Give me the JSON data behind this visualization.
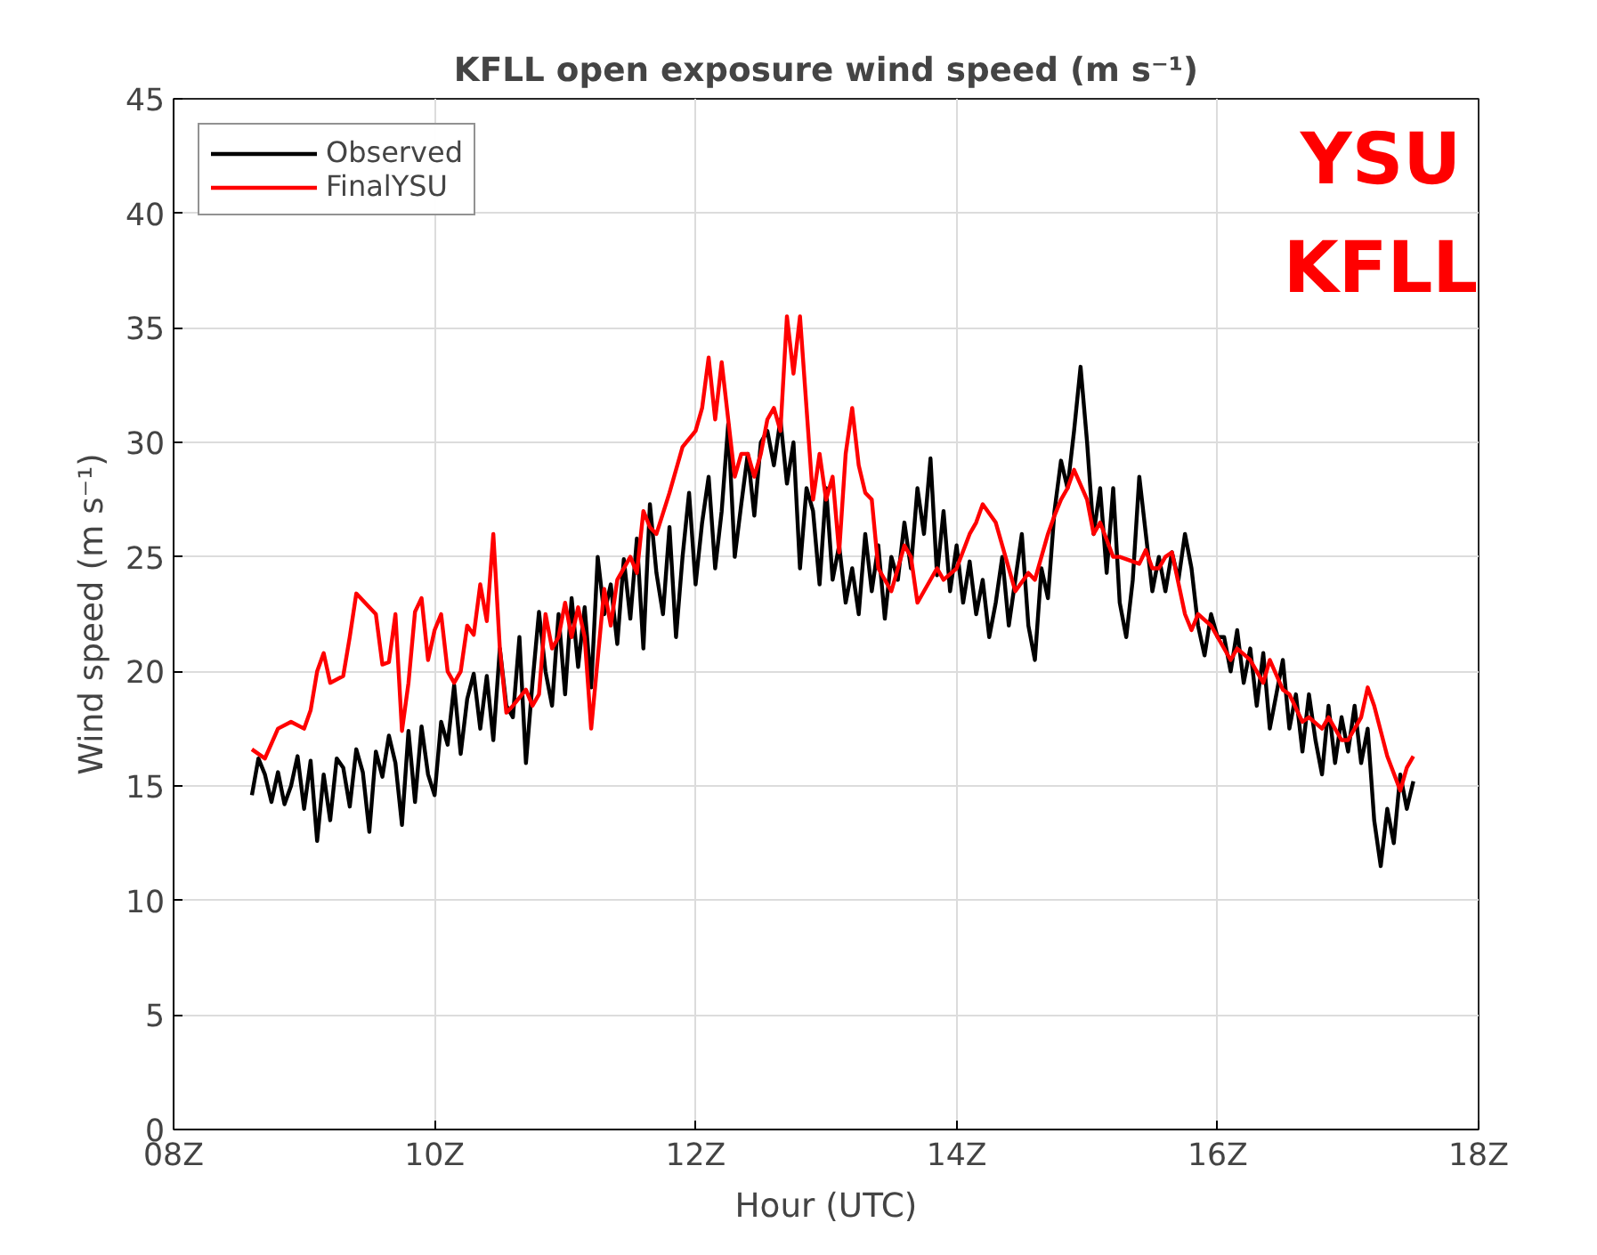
{
  "chart_data": {
    "type": "line",
    "title": "KFLL open exposure wind speed (m s⁻¹)",
    "xlabel": "Hour (UTC)",
    "ylabel": "Wind speed (m s⁻¹)",
    "annotations": [
      "YSU",
      "KFLL"
    ],
    "xlim": [
      8,
      18
    ],
    "ylim": [
      0,
      45
    ],
    "xticks": [
      {
        "value": 8,
        "label": "08Z"
      },
      {
        "value": 10,
        "label": "10Z"
      },
      {
        "value": 12,
        "label": "12Z"
      },
      {
        "value": 14,
        "label": "14Z"
      },
      {
        "value": 16,
        "label": "16Z"
      },
      {
        "value": 18,
        "label": "18Z"
      }
    ],
    "yticks": [
      0,
      5,
      10,
      15,
      20,
      25,
      30,
      35,
      40,
      45
    ],
    "grid": true,
    "legend": "top left",
    "series": [
      {
        "name": "Observed",
        "color": "#000000",
        "x": [
          8.6,
          8.65,
          8.7,
          8.75,
          8.8,
          8.85,
          8.9,
          8.95,
          9.0,
          9.05,
          9.1,
          9.15,
          9.2,
          9.25,
          9.3,
          9.35,
          9.4,
          9.45,
          9.5,
          9.55,
          9.6,
          9.65,
          9.7,
          9.75,
          9.8,
          9.85,
          9.9,
          9.95,
          10.0,
          10.05,
          10.1,
          10.15,
          10.2,
          10.25,
          10.3,
          10.35,
          10.4,
          10.45,
          10.5,
          10.55,
          10.6,
          10.65,
          10.7,
          10.75,
          10.8,
          10.85,
          10.9,
          10.95,
          11.0,
          11.05,
          11.1,
          11.15,
          11.2,
          11.25,
          11.3,
          11.35,
          11.4,
          11.45,
          11.5,
          11.55,
          11.6,
          11.65,
          11.7,
          11.75,
          11.8,
          11.85,
          11.9,
          11.95,
          12.0,
          12.05,
          12.1,
          12.15,
          12.2,
          12.25,
          12.3,
          12.35,
          12.4,
          12.45,
          12.5,
          12.55,
          12.6,
          12.65,
          12.7,
          12.75,
          12.8,
          12.85,
          12.9,
          12.95,
          13.0,
          13.05,
          13.1,
          13.15,
          13.2,
          13.25,
          13.3,
          13.35,
          13.4,
          13.45,
          13.5,
          13.55,
          13.6,
          13.65,
          13.7,
          13.75,
          13.8,
          13.85,
          13.9,
          13.95,
          14.0,
          14.05,
          14.1,
          14.15,
          14.2,
          14.25,
          14.3,
          14.35,
          14.4,
          14.45,
          14.5,
          14.55,
          14.6,
          14.65,
          14.7,
          14.75,
          14.8,
          14.85,
          14.9,
          14.95,
          15.0,
          15.05,
          15.1,
          15.15,
          15.2,
          15.25,
          15.3,
          15.35,
          15.4,
          15.45,
          15.5,
          15.55,
          15.6,
          15.65,
          15.7,
          15.75,
          15.8,
          15.85,
          15.9,
          15.95,
          16.0,
          16.05,
          16.1,
          16.15,
          16.2,
          16.25,
          16.3,
          16.35,
          16.4,
          16.45,
          16.5,
          16.55,
          16.6,
          16.65,
          16.7,
          16.75,
          16.8,
          16.85,
          16.9,
          16.95,
          17.0,
          17.05,
          17.1,
          17.15,
          17.2,
          17.25,
          17.3,
          17.35,
          17.4,
          17.45,
          17.5
        ],
        "values": [
          14.6,
          16.2,
          15.5,
          14.3,
          15.6,
          14.2,
          15.0,
          16.3,
          14.0,
          16.1,
          12.6,
          15.5,
          13.5,
          16.2,
          15.8,
          14.1,
          16.6,
          15.6,
          13.0,
          16.5,
          15.4,
          17.2,
          16.0,
          13.3,
          17.4,
          14.3,
          17.6,
          15.5,
          14.6,
          17.8,
          16.8,
          19.4,
          16.4,
          18.8,
          19.9,
          17.5,
          19.8,
          17.0,
          21.0,
          18.5,
          18.0,
          21.5,
          16.0,
          19.5,
          22.6,
          20.0,
          18.5,
          22.5,
          19.0,
          23.2,
          20.2,
          22.8,
          19.3,
          25.0,
          22.5,
          23.8,
          21.2,
          24.9,
          22.3,
          25.8,
          21.0,
          27.3,
          24.3,
          22.5,
          26.3,
          21.5,
          25.0,
          27.8,
          23.8,
          26.5,
          28.5,
          24.5,
          27.0,
          30.8,
          25.0,
          27.3,
          29.5,
          26.8,
          30.0,
          30.5,
          29.0,
          31.0,
          28.2,
          30.0,
          24.5,
          28.0,
          27.0,
          23.8,
          28.0,
          24.0,
          25.5,
          23.0,
          24.5,
          22.5,
          26.0,
          23.5,
          25.5,
          22.3,
          25.0,
          24.0,
          26.5,
          24.5,
          28.0,
          26.0,
          29.3,
          24.2,
          27.0,
          23.5,
          25.5,
          23.0,
          24.8,
          22.5,
          24.0,
          21.5,
          23.0,
          25.0,
          22.0,
          24.0,
          26.0,
          22.0,
          20.5,
          24.5,
          23.2,
          27.0,
          29.2,
          28.0,
          30.5,
          33.3,
          30.0,
          26.0,
          28.0,
          24.3,
          28.0,
          23.0,
          21.5,
          24.0,
          28.5,
          26.0,
          23.5,
          25.0,
          23.5,
          25.2,
          24.0,
          26.0,
          24.5,
          22.0,
          20.7,
          22.5,
          21.5,
          21.5,
          20.0,
          21.8,
          19.5,
          21.0,
          18.5,
          20.8,
          17.5,
          19.0,
          20.5,
          17.5,
          19.0,
          16.5,
          19.0,
          17.0,
          15.5,
          18.5,
          16.0,
          18.0,
          16.5,
          18.5,
          16.0,
          17.5,
          13.5,
          11.5,
          14.0,
          12.5,
          15.5,
          14.0,
          15.2
        ]
      },
      {
        "name": "FinalYSU",
        "color": "#ff0000",
        "x": [
          8.6,
          8.7,
          8.8,
          8.9,
          9.0,
          9.05,
          9.1,
          9.15,
          9.2,
          9.3,
          9.35,
          9.4,
          9.5,
          9.55,
          9.6,
          9.65,
          9.7,
          9.75,
          9.8,
          9.85,
          9.9,
          9.95,
          10.0,
          10.05,
          10.1,
          10.15,
          10.2,
          10.25,
          10.3,
          10.35,
          10.4,
          10.45,
          10.5,
          10.55,
          10.6,
          10.7,
          10.75,
          10.8,
          10.85,
          10.9,
          10.95,
          11.0,
          11.05,
          11.1,
          11.15,
          11.2,
          11.3,
          11.35,
          11.4,
          11.5,
          11.55,
          11.6,
          11.65,
          11.7,
          11.8,
          11.9,
          12.0,
          12.05,
          12.1,
          12.15,
          12.2,
          12.3,
          12.35,
          12.4,
          12.45,
          12.5,
          12.55,
          12.6,
          12.65,
          12.7,
          12.75,
          12.8,
          12.85,
          12.9,
          12.95,
          13.0,
          13.05,
          13.1,
          13.15,
          13.2,
          13.25,
          13.3,
          13.35,
          13.4,
          13.5,
          13.55,
          13.6,
          13.65,
          13.7,
          13.75,
          13.85,
          13.9,
          14.0,
          14.1,
          14.15,
          14.2,
          14.3,
          14.35,
          14.4,
          14.45,
          14.55,
          14.6,
          14.7,
          14.75,
          14.8,
          14.85,
          14.9,
          15.0,
          15.05,
          15.1,
          15.2,
          15.25,
          15.35,
          15.4,
          15.45,
          15.5,
          15.55,
          15.6,
          15.65,
          15.75,
          15.8,
          15.85,
          15.95,
          16.0,
          16.1,
          16.15,
          16.25,
          16.35,
          16.4,
          16.5,
          16.55,
          16.65,
          16.7,
          16.8,
          16.85,
          16.95,
          17.0,
          17.1,
          17.15,
          17.2,
          17.3,
          17.4,
          17.45,
          17.5
        ],
        "values": [
          16.6,
          16.2,
          17.5,
          17.8,
          17.5,
          18.3,
          20.0,
          20.8,
          19.5,
          19.8,
          21.5,
          23.4,
          22.8,
          22.5,
          20.3,
          20.4,
          22.5,
          17.4,
          19.5,
          22.6,
          23.2,
          20.5,
          21.8,
          22.5,
          20.0,
          19.5,
          20.0,
          22.0,
          21.6,
          23.8,
          22.2,
          26.0,
          21.0,
          18.2,
          18.5,
          19.2,
          18.5,
          19.0,
          22.5,
          21.0,
          21.5,
          23.0,
          21.5,
          22.8,
          21.5,
          17.5,
          23.6,
          22.0,
          24.0,
          25.0,
          24.3,
          27.0,
          26.3,
          26.0,
          27.8,
          29.8,
          30.5,
          31.5,
          33.7,
          31.0,
          33.5,
          28.5,
          29.5,
          29.5,
          28.5,
          29.5,
          31.0,
          31.5,
          30.5,
          35.5,
          33.0,
          35.5,
          31.5,
          27.5,
          29.5,
          27.5,
          28.5,
          25.2,
          29.5,
          31.5,
          29.0,
          27.8,
          27.5,
          24.5,
          23.5,
          24.5,
          25.5,
          25.0,
          23.0,
          23.5,
          24.5,
          24.0,
          24.5,
          26.0,
          26.5,
          27.3,
          26.5,
          25.5,
          24.5,
          23.5,
          24.3,
          24.0,
          26.0,
          26.8,
          27.5,
          28.0,
          28.8,
          27.5,
          26.0,
          26.5,
          25.0,
          25.0,
          24.8,
          24.7,
          25.3,
          24.5,
          24.5,
          25.0,
          25.2,
          22.5,
          21.8,
          22.5,
          22.0,
          21.5,
          20.5,
          21.0,
          20.5,
          19.5,
          20.5,
          19.2,
          19.0,
          17.8,
          18.0,
          17.5,
          18.0,
          17.0,
          17.0,
          18.0,
          19.3,
          18.5,
          16.3,
          14.8,
          15.8,
          16.3
        ]
      }
    ]
  }
}
